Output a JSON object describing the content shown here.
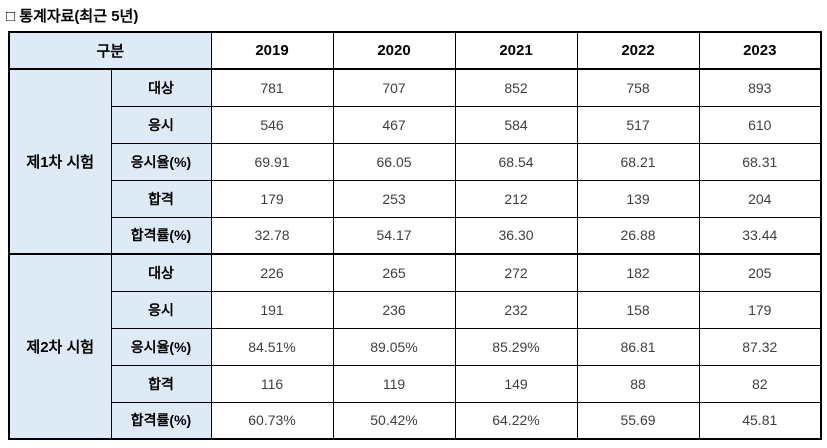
{
  "title": "□ 통계자료(최근 5년)",
  "table": {
    "corner_label": "구분",
    "years": [
      "2019",
      "2020",
      "2021",
      "2022",
      "2023"
    ],
    "groups": [
      {
        "label": "제1차 시험",
        "rows": [
          {
            "label": "대상",
            "values": [
              "781",
              "707",
              "852",
              "758",
              "893"
            ]
          },
          {
            "label": "응시",
            "values": [
              "546",
              "467",
              "584",
              "517",
              "610"
            ]
          },
          {
            "label": "응시율(%)",
            "values": [
              "69.91",
              "66.05",
              "68.54",
              "68.21",
              "68.31"
            ]
          },
          {
            "label": "합격",
            "values": [
              "179",
              "253",
              "212",
              "139",
              "204"
            ]
          },
          {
            "label": "합격률(%)",
            "values": [
              "32.78",
              "54.17",
              "36.30",
              "26.88",
              "33.44"
            ]
          }
        ]
      },
      {
        "label": "제2차 시험",
        "rows": [
          {
            "label": "대상",
            "values": [
              "226",
              "265",
              "272",
              "182",
              "205"
            ]
          },
          {
            "label": "응시",
            "values": [
              "191",
              "236",
              "232",
              "158",
              "179"
            ]
          },
          {
            "label": "응시율(%)",
            "values": [
              "84.51%",
              "89.05%",
              "85.29%",
              "86.81",
              "87.32"
            ]
          },
          {
            "label": "합격",
            "values": [
              "116",
              "119",
              "149",
              "88",
              "82"
            ]
          },
          {
            "label": "합격률(%)",
            "values": [
              "60.73%",
              "50.42%",
              "64.22%",
              "55.69",
              "45.81"
            ]
          }
        ]
      }
    ]
  },
  "colors": {
    "header_fill": "#deebf7",
    "border": "#000000",
    "value_text": "#3f3f3f"
  }
}
